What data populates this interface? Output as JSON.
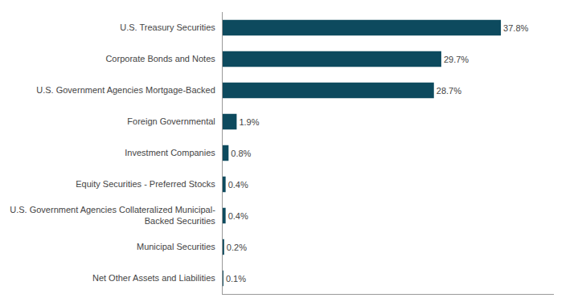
{
  "chart_data": {
    "type": "bar",
    "orientation": "horizontal",
    "categories": [
      "U.S. Treasury Securities",
      "Corporate Bonds and Notes",
      "U.S. Government Agencies Mortgage-Backed",
      "Foreign Governmental",
      "Investment Companies",
      "Equity Securities - Preferred Stocks",
      "U.S. Government Agencies Collateralized Municipal-\nBacked Securities",
      "Municipal Securities",
      "Net Other Assets and Liabilities"
    ],
    "values": [
      37.8,
      29.7,
      28.7,
      1.9,
      0.8,
      0.4,
      0.4,
      0.2,
      0.1
    ],
    "value_labels": [
      "37.8%",
      "29.7%",
      "28.7%",
      "1.9%",
      "0.8%",
      "0.4%",
      "0.4%",
      "0.2%",
      "0.1%"
    ],
    "color": "#0d4a5e",
    "xlim": [
      0,
      45
    ],
    "data_labels": true,
    "tick_labels": "y",
    "grid": false
  }
}
